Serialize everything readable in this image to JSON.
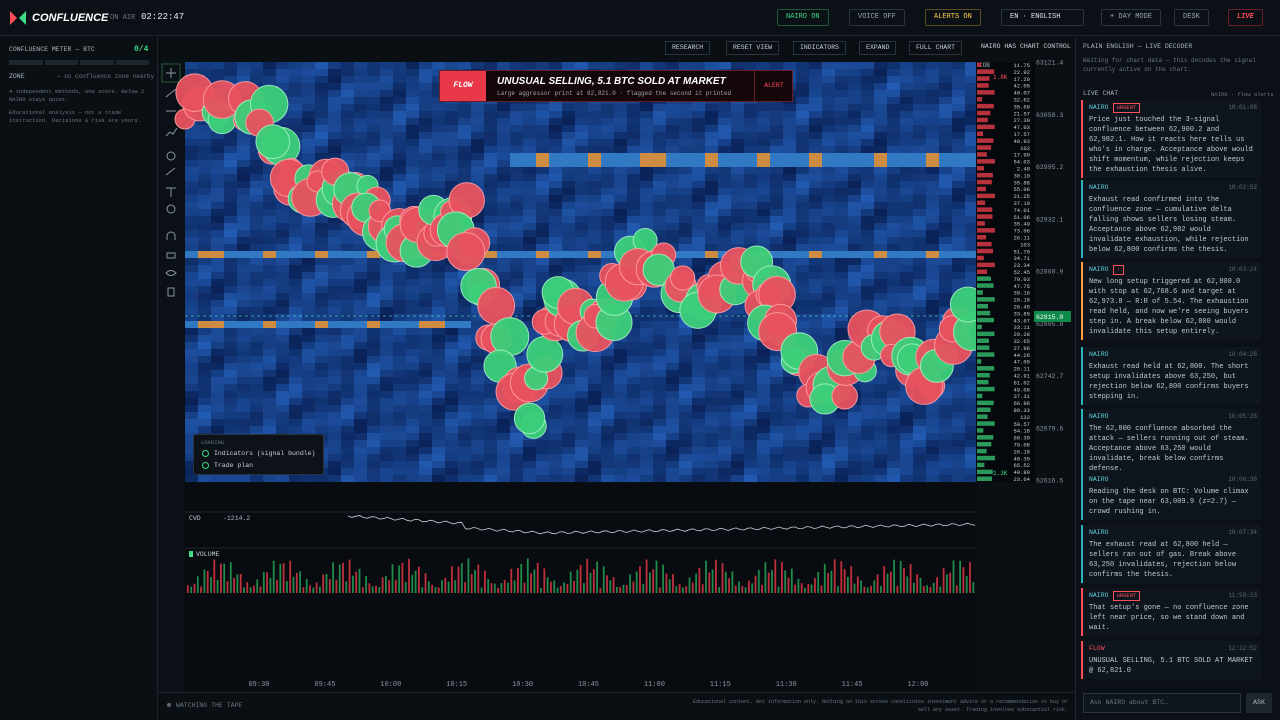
{
  "header": {
    "logo": "CONFLUENCE",
    "on_air": "ON AIR",
    "clock": "02:22:47",
    "buttons": [
      "NAIRO ON",
      "VOICE OFF",
      "ALERTS ON"
    ],
    "language": "EN · ENGLISH",
    "day_mode": "☀ DAY MODE",
    "desk": "DESK",
    "live": "LIVE"
  },
  "meter": {
    "title": "CONFLUENCE METER — BTC",
    "score": "0/4",
    "zone_label": "ZONE",
    "zone_value": "— no confluence zone nearby",
    "note": "4 independent methods, one score. Below 2 NAIRO stays quiet.",
    "disclaimer": "Educational analysis — not a trade instruction. Decisions & risk are yours."
  },
  "chart_toolbar": [
    "RESEARCH",
    "RESET VIEW",
    "INDICATORS",
    "EXPAND",
    "FULL CHART",
    "NAIRO HAS CHART CONTROL"
  ],
  "flow_alert": {
    "tag": "FLOW",
    "title": "UNUSUAL SELLING, 5.1 BTC SOLD AT MARKET",
    "detail": "Large aggressor print at 62,821.0 · flagged the second it printed",
    "action": "ALERT"
  },
  "loading": {
    "title": "LOADING",
    "items": [
      "Indicators (signal bundle)",
      "Trade plan"
    ]
  },
  "price_axis": {
    "labels": [
      "63121.4",
      "63058.3",
      "62995.2",
      "62932.1",
      "62868.9",
      "62805.8",
      "62742.7",
      "62679.6",
      "62616.5"
    ],
    "current": "62815.0"
  },
  "order_book": {
    "title": "COB",
    "top_size": "1.8K",
    "bottom_size": "1.3K",
    "sizes": [
      "11.75",
      "22.92",
      "17.20",
      "42.05",
      "40.07",
      "32.62",
      "35.69",
      "21.57",
      "27.30",
      "47.03",
      "17.57",
      "48.93",
      "102",
      "17.99",
      "54.03",
      "2.48",
      "30.10",
      "35.88",
      "55.06",
      "21.25",
      "37.10",
      "74.01",
      "51.06",
      "35.49",
      "73.06",
      "26.11",
      "103",
      "51.70",
      "34.71",
      "23.34",
      "52.45",
      "70.03",
      "47.75",
      "39.16",
      "29.18",
      "26.45",
      "33.85",
      "43.67",
      "33.11",
      "29.28",
      "32.65",
      "27.96",
      "44.26",
      "47.06",
      "26.11",
      "42.91",
      "61.02",
      "49.08",
      "37.31",
      "66.96",
      "80.33",
      "132",
      "50.57",
      "54.18",
      "60.30",
      "79.08",
      "26.18",
      "48.35",
      "65.52",
      "49.89",
      "23.64"
    ]
  },
  "cvd": {
    "label": "CVD",
    "value": "-1214.2"
  },
  "volume": {
    "label": "VOLUME"
  },
  "time_axis": [
    "09:30",
    "09:45",
    "10:00",
    "10:15",
    "10:30",
    "10:45",
    "11:00",
    "11:15",
    "11:30",
    "11:45",
    "12:00"
  ],
  "decoder": {
    "title": "PLAIN ENGLISH — LIVE DECODER",
    "text": "Waiting for chart data — this decodes the signal currently active on the chart."
  },
  "chat": {
    "title": "LIVE CHAT",
    "subtitle": "NAIRO · flow alerts",
    "messages": [
      {
        "author": "NAIRO",
        "badge": "URGENT",
        "time": "10:01:08",
        "text": "Price just touched the 3-signal confluence between 62,900.2 and 62,982.1. How it reacts here tells us who's in charge. Acceptance above would shift momentum, while rejection keeps the exhaustion thesis alive."
      },
      {
        "author": "NAIRO",
        "time": "10:02:52",
        "text": "Exhaust read confirmed into the confluence zone — cumulative delta falling shows sellers losing steam. Acceptance above 62,982 would invalidate exhaustion, while rejection below 62,800 confirms the thesis."
      },
      {
        "author": "NAIRO",
        "badge": "!",
        "time": "10:03:24",
        "text": "New long setup triggered at 62,800.0 with stop at 62,768.6 and target at 62,973.8 — R:R of 5.54. The exhaustion read held, and now we're seeing buyers step in. A break below 62,800 would invalidate this setup entirely."
      },
      {
        "author": "NAIRO",
        "time": "10:04:26",
        "text": "Exhaust read held at 62,800. The short setup invalidates above 63,250, but rejection below 62,800 confirms buyers stepping in."
      },
      {
        "author": "NAIRO",
        "time": "10:05:28",
        "text": "The 62,800 confluence absorbed the attack — sellers running out of steam. Acceptance above 63,250 would invalidate, break below confirms defense."
      },
      {
        "author": "NAIRO",
        "time": "10:06:36",
        "text": "Reading the desk on BTC: Volume climax on the tape near 63,009.9 (z=2.7) — crowd rushing in."
      },
      {
        "author": "NAIRO",
        "time": "10:07:34",
        "text": "The exhaust read at 62,800 held — sellers ran out of gas. Break above 63,250 invalidates, rejection below confirms the thesis."
      },
      {
        "author": "NAIRO",
        "badge": "URGENT",
        "time": "11:59:23",
        "text": "That setup's gone — no confluence zone left near price, so we stand down and wait."
      },
      {
        "author": "FLOW",
        "time": "12:12:52",
        "text": "UNUSUAL SELLING, 5.1 BTC SOLD AT MARKET @ 62,821.0"
      }
    ]
  },
  "input": {
    "placeholder": "Ask NAIRO about BTC…",
    "button": "ASK"
  },
  "footer": {
    "status": "WATCHING THE TAPE",
    "disclaimer": "Educational content. Not information only. Nothing on this screen constitutes investment advice or a recommendation to buy or sell any asset. Trading involves substantial risk."
  }
}
